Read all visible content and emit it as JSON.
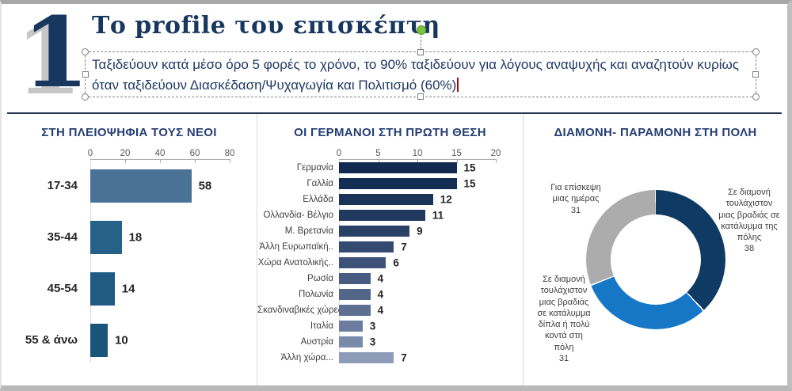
{
  "header": {
    "number": "1",
    "title": "Το profile του επισκέπτη",
    "subtitle_line1": "Ταξιδεύουν κατά μέσο όρο 5 φορές το χρόνο, το 90% ταξιδεύουν για λόγους αναψυχής και αναζητούν κυρίως",
    "subtitle_line2": "όταν ταξιδεύουν Διασκέδαση/Ψυχαγωγία και Πολιτισμό (60%)"
  },
  "colors": {
    "navy_text": "#17375E",
    "chart_title_blue": "#263E73",
    "divider": "#20304F",
    "selection_handle_green": "#7DC242",
    "text_cursor_red": "#C00000",
    "panel_separator": "#D9D9D9"
  },
  "chart_data": [
    {
      "type": "bar",
      "orientation": "horizontal",
      "title": "ΣΤΗ ΠΛΕΙΟΨΗΦΙΑ ΤΟΥΣ ΝΕΟΙ",
      "categories": [
        "17-34",
        "35-44",
        "45-54",
        "55 & άνω"
      ],
      "values": [
        58,
        18,
        14,
        10
      ],
      "xlim": [
        0,
        80
      ],
      "ticks": [
        0,
        20,
        40,
        60,
        80
      ],
      "axis_position": "top",
      "grid": false,
      "bar_colors": [
        "#4A7196",
        "#26618A",
        "#1F5B82",
        "#19547B"
      ]
    },
    {
      "type": "bar",
      "orientation": "horizontal",
      "title": "ΟΙ ΓΕΡΜΑΝΟΙ ΣΤΗ ΠΡΩΤΗ ΘΕΣΗ",
      "categories": [
        "Γερμανία",
        "Γαλλία",
        "Ελλάδα",
        "Ολλανδία- Βέλγιο",
        "Μ. Βρετανία",
        "Άλλη Ευρωπαϊκή..",
        "Χώρα Ανατολικής..",
        "Ρωσία",
        "Πολωνία",
        "Σκανδιναβικές χώρες",
        "Ιταλία",
        "Αυστρία",
        "Άλλη χώρα..."
      ],
      "values": [
        15,
        15,
        12,
        11,
        9,
        7,
        6,
        4,
        4,
        4,
        3,
        3,
        7
      ],
      "xlim": [
        0,
        20
      ],
      "ticks": [
        0,
        5,
        10,
        15,
        20
      ],
      "axis_position": "top",
      "grid": false,
      "bar_colors": [
        "#122A50",
        "#142D54",
        "#1B3259",
        "#21395F",
        "#2A4166",
        "#344A70",
        "#3D5278",
        "#475C80",
        "#516689",
        "#5D7092",
        "#6B7CA0",
        "#7A8AAB",
        "#8E9CBA"
      ]
    },
    {
      "type": "donut",
      "title": "ΔΙΑΜΟΝΗ- ΠΑΡΑΜΟΝΗ ΣΤΗ ΠΟΛΗ",
      "start_angle_deg": 0,
      "direction": "clockwise",
      "slices": [
        {
          "label": "Σε διαμονή τουλάχιστον μιας βραδιάς σε κατάλυμμα της πόλης",
          "value": 38,
          "color": "#0E3A63"
        },
        {
          "label": "Σε διαμονή τουλάχιστον μιας βραδιάς σε κατάλυμμα δίπλα ή πολύ κοντά στη πόλη",
          "value": 31,
          "color": "#1577C5"
        },
        {
          "label": "Για επίσκεψη μιας ημέρας",
          "value": 31,
          "color": "#ACACAC"
        }
      ]
    }
  ]
}
